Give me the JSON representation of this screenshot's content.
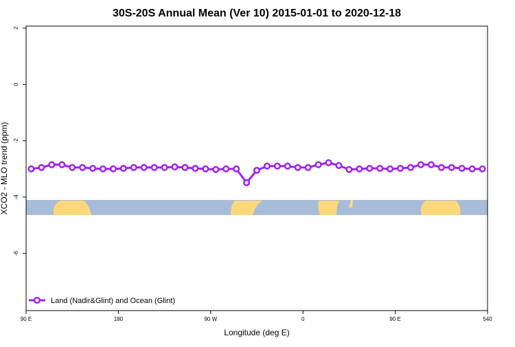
{
  "chart_data": {
    "type": "line",
    "title": "30S-20S Annual Mean (Ver 10)   2015-01-01 to 2020-12-18",
    "x_label": "Longitude (deg E)",
    "y_label": "XCO2 - MLO trend (ppm)",
    "xlim": [
      90,
      540
    ],
    "xticks": [
      {
        "value": 90,
        "label": "90 E"
      },
      180,
      {
        "value": 270,
        "label": "90 W"
      },
      {
        "value": 360,
        "label": "0"
      },
      {
        "value": 450,
        "label": "90 E"
      },
      540
    ],
    "ylim": [
      -8.03,
      2.07
    ],
    "yticks": [
      2,
      0,
      -2,
      -4,
      -6
    ],
    "legend_position": "bottom-left",
    "series": [
      {
        "name": "Land (Nadir&Glint) and Ocean (Glint)",
        "color": "#a020f0",
        "x": [
          95,
          105,
          115,
          125,
          135,
          145,
          155,
          165,
          175,
          185,
          195,
          205,
          215,
          225,
          235,
          245,
          255,
          265,
          275,
          285,
          295,
          305,
          315,
          325,
          335,
          345,
          355,
          365,
          375,
          385,
          395,
          405,
          415,
          425,
          435,
          445,
          455,
          465,
          475,
          485,
          495,
          505,
          515,
          525,
          535
        ],
        "values": [
          -3.0,
          -2.95,
          -2.85,
          -2.85,
          -2.95,
          -2.95,
          -2.98,
          -3.0,
          -3.0,
          -2.98,
          -2.95,
          -2.95,
          -2.95,
          -2.95,
          -2.93,
          -2.95,
          -2.98,
          -3.0,
          -3.02,
          -3.0,
          -3.0,
          -3.49,
          -3.05,
          -2.9,
          -2.9,
          -2.9,
          -2.95,
          -2.95,
          -2.85,
          -2.78,
          -2.88,
          -3.02,
          -3.0,
          -2.98,
          -2.98,
          -3.0,
          -2.98,
          -2.95,
          -2.85,
          -2.85,
          -2.95,
          -2.95,
          -2.98,
          -3.0,
          -3.0
        ]
      }
    ]
  }
}
